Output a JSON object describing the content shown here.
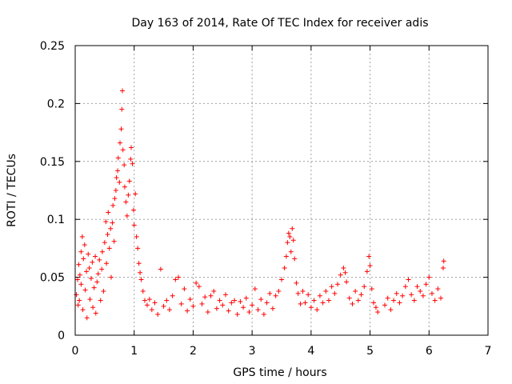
{
  "chart_data": {
    "type": "scatter",
    "title": "Day 163 of 2014, Rate Of TEC Index for receiver adis",
    "xlabel": "GPS time / hours",
    "ylabel": "ROTI / TECUs",
    "xlim": [
      0,
      7
    ],
    "ylim": [
      0,
      0.25
    ],
    "xticks": [
      "0",
      "1",
      "2",
      "3",
      "4",
      "5",
      "6",
      "7"
    ],
    "yticks": [
      "0",
      "0.05",
      "0.1",
      "0.15",
      "0.2",
      "0.25"
    ],
    "grid": true,
    "marker": "+",
    "series": [
      {
        "name": "ROTI",
        "color": "#ff0000",
        "points": [
          [
            0.02,
            0.035
          ],
          [
            0.04,
            0.048
          ],
          [
            0.05,
            0.026
          ],
          [
            0.06,
            0.061
          ],
          [
            0.07,
            0.03
          ],
          [
            0.08,
            0.052
          ],
          [
            0.1,
            0.044
          ],
          [
            0.1,
            0.072
          ],
          [
            0.12,
            0.085
          ],
          [
            0.13,
            0.022
          ],
          [
            0.14,
            0.066
          ],
          [
            0.16,
            0.078
          ],
          [
            0.17,
            0.039
          ],
          [
            0.19,
            0.055
          ],
          [
            0.2,
            0.015
          ],
          [
            0.22,
            0.07
          ],
          [
            0.24,
            0.058
          ],
          [
            0.25,
            0.031
          ],
          [
            0.27,
            0.049
          ],
          [
            0.29,
            0.063
          ],
          [
            0.3,
            0.024
          ],
          [
            0.32,
            0.041
          ],
          [
            0.34,
            0.068
          ],
          [
            0.35,
            0.019
          ],
          [
            0.37,
            0.046
          ],
          [
            0.39,
            0.053
          ],
          [
            0.41,
            0.065
          ],
          [
            0.43,
            0.03
          ],
          [
            0.45,
            0.057
          ],
          [
            0.46,
            0.072
          ],
          [
            0.48,
            0.038
          ],
          [
            0.5,
            0.08
          ],
          [
            0.52,
            0.098
          ],
          [
            0.53,
            0.062
          ],
          [
            0.55,
            0.087
          ],
          [
            0.56,
            0.106
          ],
          [
            0.58,
            0.075
          ],
          [
            0.6,
            0.092
          ],
          [
            0.61,
            0.05
          ],
          [
            0.63,
            0.097
          ],
          [
            0.64,
            0.112
          ],
          [
            0.66,
            0.081
          ],
          [
            0.67,
            0.118
          ],
          [
            0.69,
            0.125
          ],
          [
            0.7,
            0.136
          ],
          [
            0.72,
            0.142
          ],
          [
            0.73,
            0.153
          ],
          [
            0.75,
            0.132
          ],
          [
            0.76,
            0.166
          ],
          [
            0.78,
            0.178
          ],
          [
            0.79,
            0.195
          ],
          [
            0.8,
            0.211
          ],
          [
            0.81,
            0.16
          ],
          [
            0.83,
            0.147
          ],
          [
            0.84,
            0.128
          ],
          [
            0.86,
            0.115
          ],
          [
            0.88,
            0.103
          ],
          [
            0.9,
            0.121
          ],
          [
            0.92,
            0.133
          ],
          [
            0.94,
            0.152
          ],
          [
            0.95,
            0.162
          ],
          [
            0.97,
            0.148
          ],
          [
            0.99,
            0.108
          ],
          [
            1.0,
            0.095
          ],
          [
            1.02,
            0.122
          ],
          [
            1.04,
            0.085
          ],
          [
            1.06,
            0.075
          ],
          [
            1.08,
            0.062
          ],
          [
            1.1,
            0.054
          ],
          [
            1.12,
            0.048
          ],
          [
            1.15,
            0.038
          ],
          [
            1.18,
            0.03
          ],
          [
            1.22,
            0.026
          ],
          [
            1.26,
            0.031
          ],
          [
            1.3,
            0.022
          ],
          [
            1.35,
            0.028
          ],
          [
            1.4,
            0.018
          ],
          [
            1.45,
            0.057
          ],
          [
            1.5,
            0.025
          ],
          [
            1.55,
            0.03
          ],
          [
            1.6,
            0.022
          ],
          [
            1.65,
            0.034
          ],
          [
            1.7,
            0.048
          ],
          [
            1.75,
            0.05
          ],
          [
            1.8,
            0.027
          ],
          [
            1.85,
            0.04
          ],
          [
            1.9,
            0.021
          ],
          [
            1.95,
            0.031
          ],
          [
            2.0,
            0.025
          ],
          [
            2.05,
            0.045
          ],
          [
            2.1,
            0.042
          ],
          [
            2.15,
            0.027
          ],
          [
            2.2,
            0.033
          ],
          [
            2.25,
            0.02
          ],
          [
            2.3,
            0.034
          ],
          [
            2.35,
            0.038
          ],
          [
            2.4,
            0.023
          ],
          [
            2.45,
            0.03
          ],
          [
            2.5,
            0.026
          ],
          [
            2.55,
            0.035
          ],
          [
            2.6,
            0.021
          ],
          [
            2.65,
            0.028
          ],
          [
            2.7,
            0.03
          ],
          [
            2.75,
            0.018
          ],
          [
            2.8,
            0.029
          ],
          [
            2.85,
            0.024
          ],
          [
            2.9,
            0.032
          ],
          [
            2.95,
            0.02
          ],
          [
            3.0,
            0.026
          ],
          [
            3.05,
            0.04
          ],
          [
            3.1,
            0.022
          ],
          [
            3.15,
            0.031
          ],
          [
            3.2,
            0.018
          ],
          [
            3.25,
            0.028
          ],
          [
            3.3,
            0.036
          ],
          [
            3.35,
            0.023
          ],
          [
            3.4,
            0.034
          ],
          [
            3.45,
            0.038
          ],
          [
            3.5,
            0.048
          ],
          [
            3.55,
            0.058
          ],
          [
            3.58,
            0.068
          ],
          [
            3.6,
            0.08
          ],
          [
            3.62,
            0.088
          ],
          [
            3.64,
            0.085
          ],
          [
            3.66,
            0.072
          ],
          [
            3.68,
            0.092
          ],
          [
            3.7,
            0.082
          ],
          [
            3.72,
            0.066
          ],
          [
            3.75,
            0.045
          ],
          [
            3.78,
            0.036
          ],
          [
            3.82,
            0.027
          ],
          [
            3.86,
            0.038
          ],
          [
            3.9,
            0.028
          ],
          [
            3.95,
            0.035
          ],
          [
            4.0,
            0.024
          ],
          [
            4.05,
            0.03
          ],
          [
            4.1,
            0.022
          ],
          [
            4.15,
            0.034
          ],
          [
            4.2,
            0.028
          ],
          [
            4.25,
            0.038
          ],
          [
            4.3,
            0.03
          ],
          [
            4.35,
            0.042
          ],
          [
            4.4,
            0.036
          ],
          [
            4.45,
            0.044
          ],
          [
            4.5,
            0.052
          ],
          [
            4.55,
            0.058
          ],
          [
            4.58,
            0.054
          ],
          [
            4.6,
            0.046
          ],
          [
            4.65,
            0.032
          ],
          [
            4.7,
            0.027
          ],
          [
            4.75,
            0.038
          ],
          [
            4.8,
            0.03
          ],
          [
            4.85,
            0.035
          ],
          [
            4.9,
            0.042
          ],
          [
            4.95,
            0.055
          ],
          [
            4.98,
            0.068
          ],
          [
            5.0,
            0.06
          ],
          [
            5.03,
            0.04
          ],
          [
            5.06,
            0.028
          ],
          [
            5.1,
            0.024
          ],
          [
            5.13,
            0.02
          ],
          [
            5.25,
            0.026
          ],
          [
            5.3,
            0.032
          ],
          [
            5.35,
            0.022
          ],
          [
            5.4,
            0.03
          ],
          [
            5.45,
            0.036
          ],
          [
            5.5,
            0.028
          ],
          [
            5.55,
            0.034
          ],
          [
            5.6,
            0.042
          ],
          [
            5.65,
            0.048
          ],
          [
            5.7,
            0.035
          ],
          [
            5.75,
            0.03
          ],
          [
            5.8,
            0.042
          ],
          [
            5.85,
            0.038
          ],
          [
            5.9,
            0.034
          ],
          [
            5.95,
            0.044
          ],
          [
            6.0,
            0.05
          ],
          [
            6.05,
            0.036
          ],
          [
            6.1,
            0.03
          ],
          [
            6.15,
            0.04
          ],
          [
            6.2,
            0.032
          ],
          [
            6.24,
            0.058
          ],
          [
            6.25,
            0.064
          ]
        ]
      }
    ]
  }
}
